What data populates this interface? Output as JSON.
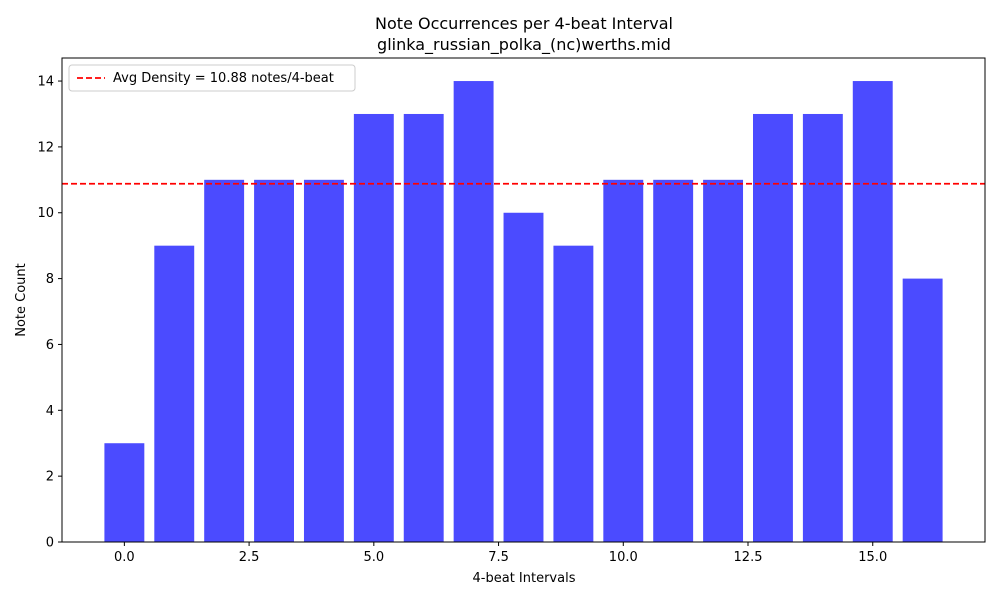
{
  "chart_data": {
    "type": "bar",
    "title": "Note Occurrences per 4-beat Interval",
    "subtitle": "glinka_russian_polka_(nc)werths.mid",
    "xlabel": "4-beat Intervals",
    "ylabel": "Note Count",
    "x": [
      0,
      1,
      2,
      3,
      4,
      5,
      6,
      7,
      8,
      9,
      10,
      11,
      12,
      13,
      14,
      15,
      16
    ],
    "values": [
      3,
      9,
      11,
      11,
      11,
      13,
      13,
      14,
      10,
      9,
      11,
      11,
      11,
      13,
      13,
      14,
      8
    ],
    "xlim": [
      -1.25,
      17.25
    ],
    "ylim": [
      0,
      14.7
    ],
    "xticks": [
      0.0,
      2.5,
      5.0,
      7.5,
      10.0,
      12.5,
      15.0
    ],
    "xtick_labels": [
      "0.0",
      "2.5",
      "5.0",
      "7.5",
      "10.0",
      "12.5",
      "15.0"
    ],
    "yticks": [
      0,
      2,
      4,
      6,
      8,
      10,
      12,
      14
    ],
    "ytick_labels": [
      "0",
      "2",
      "4",
      "6",
      "8",
      "10",
      "12",
      "14"
    ],
    "bar_color": "#4b4bff",
    "average_line": {
      "value": 10.88,
      "label": "Avg Density = 10.88 notes/4-beat",
      "color": "#ff0000",
      "style": "dashed"
    },
    "legend_position": "top-left",
    "grid": false
  }
}
